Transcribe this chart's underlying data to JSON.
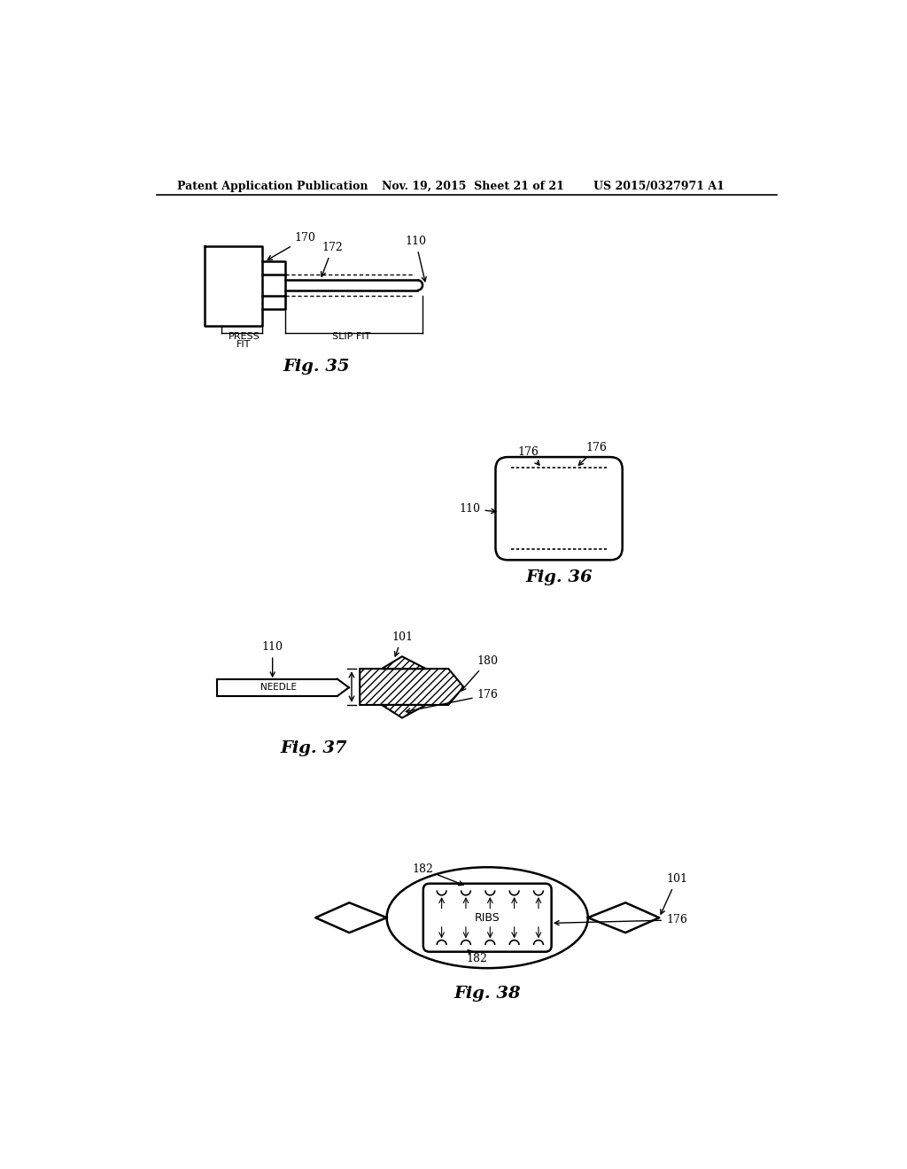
{
  "bg_color": "#ffffff",
  "header_left": "Patent Application Publication",
  "header_mid": "Nov. 19, 2015  Sheet 21 of 21",
  "header_right": "US 2015/0327971 A1",
  "fig35_label": "Fig. 35",
  "fig36_label": "Fig. 36",
  "fig37_label": "Fig. 37",
  "fig38_label": "Fig. 38",
  "line_color": "#000000",
  "text_color": "#000000"
}
